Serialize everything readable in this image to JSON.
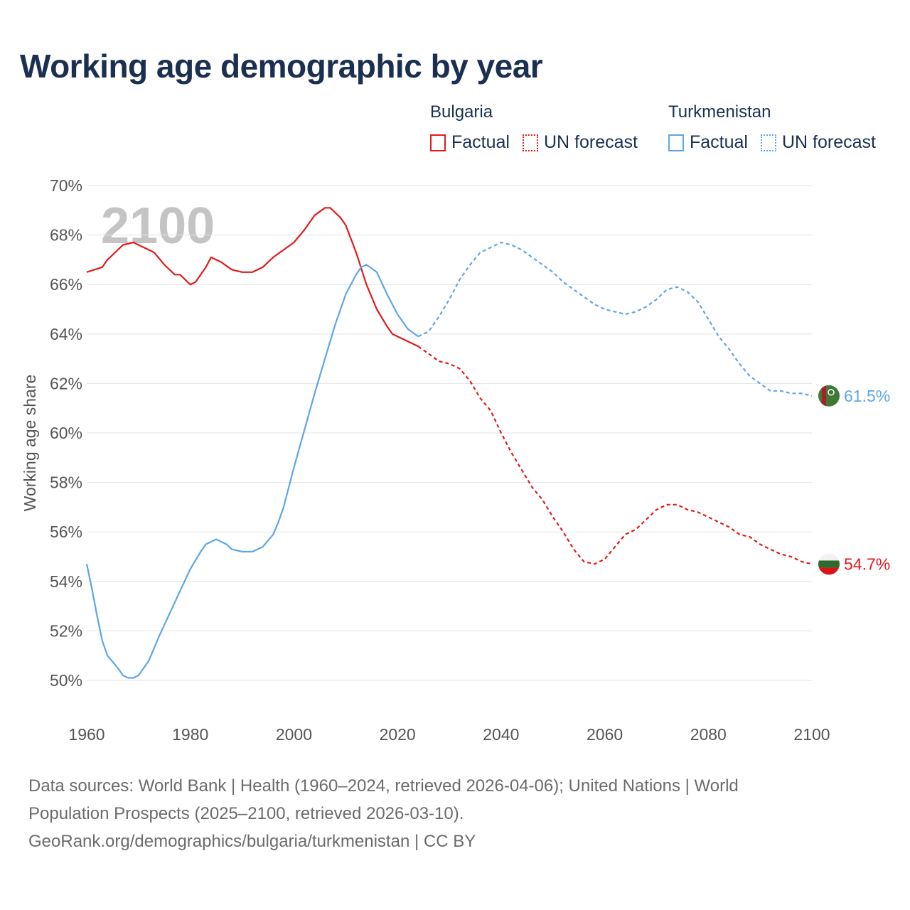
{
  "title": "Working age demographic by year",
  "legend": {
    "groups": [
      {
        "name": "Bulgaria",
        "factual_label": "Factual",
        "forecast_label": "UN forecast",
        "color": "#e01b1b"
      },
      {
        "name": "Turkmenistan",
        "factual_label": "Factual",
        "forecast_label": "UN forecast",
        "color": "#5ea6e6"
      }
    ]
  },
  "footer": {
    "line1": "Data sources: World Bank | Health (1960–2024, retrieved 2026-04-06); United Nations | World",
    "line2": "Population Prospects (2025–2100, retrieved 2026-03-10).",
    "line3": "GeoRank.org/demographics/bulgaria/turkmenistan | CC BY"
  },
  "chart_data": {
    "type": "line",
    "title": "Working age demographic by year",
    "ylabel": "Working age share",
    "xlabel": "",
    "year_watermark": "2100",
    "xlim": [
      1960,
      2100
    ],
    "ylim": [
      49,
      70.5
    ],
    "x_ticks": [
      "1960",
      "1980",
      "2000",
      "2020",
      "2040",
      "2060",
      "2080",
      "2100"
    ],
    "y_ticks": [
      {
        "value": 50,
        "label": "50%"
      },
      {
        "value": 52,
        "label": "52%"
      },
      {
        "value": 54,
        "label": "54%"
      },
      {
        "value": 56,
        "label": "56%"
      },
      {
        "value": 58,
        "label": "58%"
      },
      {
        "value": 60,
        "label": "60%"
      },
      {
        "value": 62,
        "label": "62%"
      },
      {
        "value": 64,
        "label": "64%"
      },
      {
        "value": 66,
        "label": "66%"
      },
      {
        "value": 68,
        "label": "68%"
      },
      {
        "value": 70,
        "label": "70%"
      }
    ],
    "grid": true,
    "series": [
      {
        "name": "Bulgaria",
        "color": "#e01b1b",
        "end_label": "54.7%",
        "flag": "bulgaria-flag",
        "factual": [
          [
            1960,
            66.5
          ],
          [
            1963,
            66.7
          ],
          [
            1964,
            67.0
          ],
          [
            1967,
            67.6
          ],
          [
            1969,
            67.7
          ],
          [
            1973,
            67.3
          ],
          [
            1975,
            66.8
          ],
          [
            1977,
            66.4
          ],
          [
            1978,
            66.4
          ],
          [
            1980,
            66.0
          ],
          [
            1981,
            66.1
          ],
          [
            1983,
            66.7
          ],
          [
            1984,
            67.1
          ],
          [
            1986,
            66.9
          ],
          [
            1988,
            66.6
          ],
          [
            1990,
            66.5
          ],
          [
            1992,
            66.5
          ],
          [
            1994,
            66.7
          ],
          [
            1996,
            67.1
          ],
          [
            1998,
            67.4
          ],
          [
            2000,
            67.7
          ],
          [
            2002,
            68.2
          ],
          [
            2004,
            68.8
          ],
          [
            2006,
            69.1
          ],
          [
            2007,
            69.1
          ],
          [
            2009,
            68.7
          ],
          [
            2010,
            68.4
          ],
          [
            2012,
            67.3
          ],
          [
            2014,
            66.0
          ],
          [
            2016,
            65.0
          ],
          [
            2018,
            64.3
          ],
          [
            2019,
            64.0
          ],
          [
            2020,
            63.9
          ],
          [
            2022,
            63.7
          ],
          [
            2024,
            63.5
          ]
        ],
        "forecast": [
          [
            2024,
            63.5
          ],
          [
            2026,
            63.2
          ],
          [
            2028,
            62.9
          ],
          [
            2030,
            62.8
          ],
          [
            2032,
            62.6
          ],
          [
            2034,
            62.1
          ],
          [
            2036,
            61.4
          ],
          [
            2038,
            60.9
          ],
          [
            2040,
            60.0
          ],
          [
            2042,
            59.2
          ],
          [
            2044,
            58.5
          ],
          [
            2046,
            57.8
          ],
          [
            2048,
            57.3
          ],
          [
            2050,
            56.6
          ],
          [
            2052,
            56.0
          ],
          [
            2054,
            55.3
          ],
          [
            2056,
            54.8
          ],
          [
            2058,
            54.7
          ],
          [
            2060,
            54.9
          ],
          [
            2062,
            55.4
          ],
          [
            2064,
            55.9
          ],
          [
            2066,
            56.1
          ],
          [
            2068,
            56.5
          ],
          [
            2070,
            56.9
          ],
          [
            2072,
            57.1
          ],
          [
            2074,
            57.1
          ],
          [
            2076,
            56.9
          ],
          [
            2078,
            56.8
          ],
          [
            2080,
            56.6
          ],
          [
            2082,
            56.4
          ],
          [
            2084,
            56.2
          ],
          [
            2086,
            55.9
          ],
          [
            2088,
            55.8
          ],
          [
            2090,
            55.5
          ],
          [
            2092,
            55.3
          ],
          [
            2094,
            55.1
          ],
          [
            2096,
            55.0
          ],
          [
            2098,
            54.8
          ],
          [
            2100,
            54.7
          ]
        ]
      },
      {
        "name": "Turkmenistan",
        "color": "#5ea6e6",
        "end_label": "61.5%",
        "flag": "turkmenistan-flag",
        "factual": [
          [
            1960,
            54.7
          ],
          [
            1961,
            53.7
          ],
          [
            1962,
            52.6
          ],
          [
            1963,
            51.6
          ],
          [
            1964,
            51.0
          ],
          [
            1966,
            50.5
          ],
          [
            1967,
            50.2
          ],
          [
            1968,
            50.1
          ],
          [
            1969,
            50.1
          ],
          [
            1970,
            50.2
          ],
          [
            1972,
            50.8
          ],
          [
            1974,
            51.8
          ],
          [
            1976,
            52.7
          ],
          [
            1978,
            53.6
          ],
          [
            1980,
            54.5
          ],
          [
            1982,
            55.2
          ],
          [
            1983,
            55.5
          ],
          [
            1985,
            55.7
          ],
          [
            1987,
            55.5
          ],
          [
            1988,
            55.3
          ],
          [
            1990,
            55.2
          ],
          [
            1992,
            55.2
          ],
          [
            1994,
            55.4
          ],
          [
            1996,
            55.9
          ],
          [
            1997,
            56.4
          ],
          [
            1998,
            57.0
          ],
          [
            2000,
            58.6
          ],
          [
            2002,
            60.1
          ],
          [
            2004,
            61.6
          ],
          [
            2006,
            63.0
          ],
          [
            2008,
            64.4
          ],
          [
            2010,
            65.6
          ],
          [
            2012,
            66.4
          ],
          [
            2013,
            66.7
          ],
          [
            2014,
            66.8
          ],
          [
            2016,
            66.5
          ],
          [
            2018,
            65.6
          ],
          [
            2020,
            64.8
          ],
          [
            2022,
            64.2
          ],
          [
            2024,
            63.9
          ]
        ],
        "forecast": [
          [
            2024,
            63.9
          ],
          [
            2026,
            64.1
          ],
          [
            2028,
            64.7
          ],
          [
            2030,
            65.4
          ],
          [
            2032,
            66.2
          ],
          [
            2034,
            66.8
          ],
          [
            2036,
            67.3
          ],
          [
            2038,
            67.5
          ],
          [
            2040,
            67.7
          ],
          [
            2042,
            67.6
          ],
          [
            2044,
            67.4
          ],
          [
            2046,
            67.1
          ],
          [
            2048,
            66.8
          ],
          [
            2050,
            66.5
          ],
          [
            2052,
            66.1
          ],
          [
            2054,
            65.8
          ],
          [
            2056,
            65.5
          ],
          [
            2058,
            65.2
          ],
          [
            2060,
            65.0
          ],
          [
            2062,
            64.9
          ],
          [
            2064,
            64.8
          ],
          [
            2066,
            64.9
          ],
          [
            2068,
            65.1
          ],
          [
            2070,
            65.4
          ],
          [
            2072,
            65.8
          ],
          [
            2074,
            65.9
          ],
          [
            2076,
            65.7
          ],
          [
            2078,
            65.3
          ],
          [
            2080,
            64.6
          ],
          [
            2082,
            63.9
          ],
          [
            2084,
            63.4
          ],
          [
            2086,
            62.8
          ],
          [
            2088,
            62.3
          ],
          [
            2090,
            62.0
          ],
          [
            2092,
            61.7
          ],
          [
            2094,
            61.7
          ],
          [
            2096,
            61.6
          ],
          [
            2098,
            61.6
          ],
          [
            2100,
            61.5
          ]
        ]
      }
    ]
  }
}
